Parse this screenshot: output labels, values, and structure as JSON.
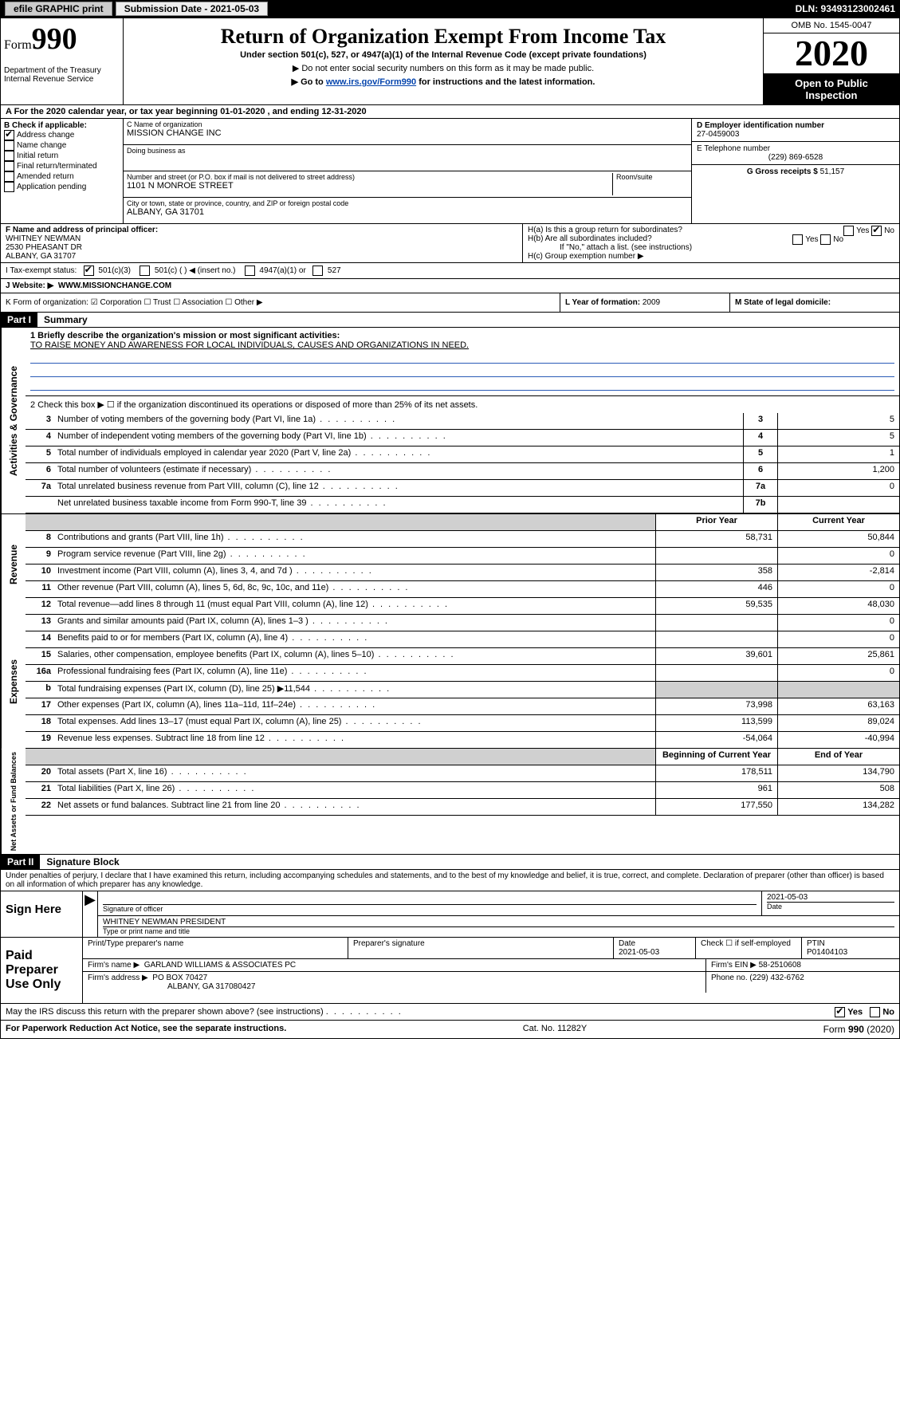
{
  "top": {
    "efile": "efile GRAPHIC print",
    "submission_label": "Submission Date - 2021-05-03",
    "dln": "DLN: 93493123002461"
  },
  "header": {
    "form_word": "Form",
    "form_num": "990",
    "title": "Return of Organization Exempt From Income Tax",
    "sub1": "Under section 501(c), 527, or 4947(a)(1) of the Internal Revenue Code (except private foundations)",
    "sub2": "▶ Do not enter social security numbers on this form as it may be made public.",
    "sub3": "▶ Go to www.irs.gov/Form990 for instructions and the latest information.",
    "dept": "Department of the Treasury\nInternal Revenue Service",
    "omb": "OMB No. 1545-0047",
    "year": "2020",
    "open1": "Open to Public",
    "open2": "Inspection"
  },
  "lineA": "A For the 2020 calendar year, or tax year beginning 01-01-2020    , and ending 12-31-2020",
  "boxB": {
    "label": "B Check if applicable:",
    "opts": [
      "Address change",
      "Name change",
      "Initial return",
      "Final return/terminated",
      "Amended return",
      "Application pending"
    ],
    "checked_index": 0
  },
  "boxC": {
    "name_label": "C Name of organization",
    "name": "MISSION CHANGE INC",
    "dba_label": "Doing business as",
    "dba": "",
    "addr_label": "Number and street (or P.O. box if mail is not delivered to street address)",
    "room_label": "Room/suite",
    "addr": "1101 N MONROE STREET",
    "city_label": "City or town, state or province, country, and ZIP or foreign postal code",
    "city": "ALBANY, GA  31701"
  },
  "boxD": {
    "label": "D Employer identification number",
    "val": "27-0459003"
  },
  "boxE": {
    "label": "E Telephone number",
    "val": "(229) 869-6528"
  },
  "boxG": {
    "label": "G Gross receipts $",
    "val": "51,157"
  },
  "boxF": {
    "label": "F  Name and address of principal officer:",
    "l1": "WHITNEY NEWMAN",
    "l2": "2530 PHEASANT DR",
    "l3": "ALBANY, GA  31707"
  },
  "boxH": {
    "a": "H(a)  Is this a group return for subordinates?",
    "b": "H(b)  Are all subordinates included?",
    "note": "If \"No,\" attach a list. (see instructions)",
    "c": "H(c)  Group exemption number ▶",
    "yes": "Yes",
    "no": "No"
  },
  "lineI": {
    "label": "I    Tax-exempt status:",
    "opts": [
      "501(c)(3)",
      "501(c) (   ) ◀ (insert no.)",
      "4947(a)(1) or",
      "527"
    ]
  },
  "lineJ": {
    "label": "J   Website: ▶",
    "val": "WWW.MISSIONCHANGE.COM"
  },
  "lineK": "K Form of organization:  ☑ Corporation  ☐ Trust  ☐ Association  ☐ Other ▶",
  "lineL": {
    "label": "L Year of formation:",
    "val": "2009"
  },
  "lineM": {
    "label": "M State of legal domicile:",
    "val": ""
  },
  "part1": {
    "hdr": "Part I",
    "title": "Summary",
    "q1_label": "1  Briefly describe the organization's mission or most significant activities:",
    "q1_val": "TO RAISE MONEY AND AWARENESS FOR LOCAL INDIVIDUALS, CAUSES AND ORGANIZATIONS IN NEED.",
    "q2": "2   Check this box ▶ ☐  if the organization discontinued its operations or disposed of more than 25% of its net assets.",
    "rows_gov": [
      {
        "n": "3",
        "d": "Number of voting members of the governing body (Part VI, line 1a)",
        "box": "3",
        "v": "5"
      },
      {
        "n": "4",
        "d": "Number of independent voting members of the governing body (Part VI, line 1b)",
        "box": "4",
        "v": "5"
      },
      {
        "n": "5",
        "d": "Total number of individuals employed in calendar year 2020 (Part V, line 2a)",
        "box": "5",
        "v": "1"
      },
      {
        "n": "6",
        "d": "Total number of volunteers (estimate if necessary)",
        "box": "6",
        "v": "1,200"
      },
      {
        "n": "7a",
        "d": "Total unrelated business revenue from Part VIII, column (C), line 12",
        "box": "7a",
        "v": "0"
      },
      {
        "n": "",
        "d": "Net unrelated business taxable income from Form 990-T, line 39",
        "box": "7b",
        "v": ""
      }
    ],
    "prior": "Prior Year",
    "current": "Current Year",
    "rows_rev": [
      {
        "n": "8",
        "d": "Contributions and grants (Part VIII, line 1h)",
        "p": "58,731",
        "c": "50,844"
      },
      {
        "n": "9",
        "d": "Program service revenue (Part VIII, line 2g)",
        "p": "",
        "c": "0"
      },
      {
        "n": "10",
        "d": "Investment income (Part VIII, column (A), lines 3, 4, and 7d )",
        "p": "358",
        "c": "-2,814"
      },
      {
        "n": "11",
        "d": "Other revenue (Part VIII, column (A), lines 5, 6d, 8c, 9c, 10c, and 11e)",
        "p": "446",
        "c": "0"
      },
      {
        "n": "12",
        "d": "Total revenue—add lines 8 through 11 (must equal Part VIII, column (A), line 12)",
        "p": "59,535",
        "c": "48,030"
      }
    ],
    "rows_exp": [
      {
        "n": "13",
        "d": "Grants and similar amounts paid (Part IX, column (A), lines 1–3 )",
        "p": "",
        "c": "0"
      },
      {
        "n": "14",
        "d": "Benefits paid to or for members (Part IX, column (A), line 4)",
        "p": "",
        "c": "0"
      },
      {
        "n": "15",
        "d": "Salaries, other compensation, employee benefits (Part IX, column (A), lines 5–10)",
        "p": "39,601",
        "c": "25,861"
      },
      {
        "n": "16a",
        "d": "Professional fundraising fees (Part IX, column (A), line 11e)",
        "p": "",
        "c": "0"
      },
      {
        "n": "b",
        "d": "Total fundraising expenses (Part IX, column (D), line 25) ▶11,544",
        "p": "shade",
        "c": "shade"
      },
      {
        "n": "17",
        "d": "Other expenses (Part IX, column (A), lines 11a–11d, 11f–24e)",
        "p": "73,998",
        "c": "63,163"
      },
      {
        "n": "18",
        "d": "Total expenses. Add lines 13–17 (must equal Part IX, column (A), line 25)",
        "p": "113,599",
        "c": "89,024"
      },
      {
        "n": "19",
        "d": "Revenue less expenses. Subtract line 18 from line 12",
        "p": "-54,064",
        "c": "-40,994"
      }
    ],
    "begin": "Beginning of Current Year",
    "end": "End of Year",
    "rows_net": [
      {
        "n": "20",
        "d": "Total assets (Part X, line 16)",
        "p": "178,511",
        "c": "134,790"
      },
      {
        "n": "21",
        "d": "Total liabilities (Part X, line 26)",
        "p": "961",
        "c": "508"
      },
      {
        "n": "22",
        "d": "Net assets or fund balances. Subtract line 21 from line 20",
        "p": "177,550",
        "c": "134,282"
      }
    ],
    "side_gov": "Activities & Governance",
    "side_rev": "Revenue",
    "side_exp": "Expenses",
    "side_net": "Net Assets or Fund Balances"
  },
  "part2": {
    "hdr": "Part II",
    "title": "Signature Block",
    "text": "Under penalties of perjury, I declare that I have examined this return, including accompanying schedules and statements, and to the best of my knowledge and belief, it is true, correct, and complete. Declaration of preparer (other than officer) is based on all information of which preparer has any knowledge.",
    "sign_here": "Sign Here",
    "sig_officer": "Signature of officer",
    "date1": "2021-05-03",
    "date_label": "Date",
    "name_title": "WHITNEY NEWMAN  PRESIDENT",
    "name_title_label": "Type or print name and title",
    "paid": "Paid Preparer Use Only",
    "prep_name_label": "Print/Type preparer's name",
    "prep_sig_label": "Preparer's signature",
    "prep_date_label": "Date",
    "prep_date": "2021-05-03",
    "check_self": "Check ☐ if self-employed",
    "ptin_label": "PTIN",
    "ptin": "P01404103",
    "firm_name_label": "Firm's name    ▶",
    "firm_name": "GARLAND WILLIAMS & ASSOCIATES PC",
    "firm_ein_label": "Firm's EIN ▶",
    "firm_ein": "58-2510608",
    "firm_addr_label": "Firm's address ▶",
    "firm_addr1": "PO BOX 70427",
    "firm_addr2": "ALBANY, GA  317080427",
    "phone_label": "Phone no.",
    "phone": "(229) 432-6762",
    "discuss": "May the IRS discuss this return with the preparer shown above? (see instructions)",
    "discuss_yes": "Yes",
    "discuss_no": "No"
  },
  "footer": {
    "left": "For Paperwork Reduction Act Notice, see the separate instructions.",
    "mid": "Cat. No. 11282Y",
    "right": "Form 990 (2020)"
  }
}
